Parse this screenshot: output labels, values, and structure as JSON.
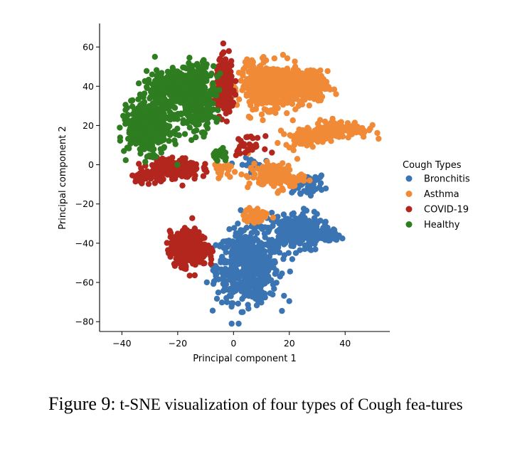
{
  "caption": {
    "label": "Figure 9:",
    "text": "t-SNE visualization of four types of Cough fea-tures"
  },
  "chart_data": {
    "type": "scatter",
    "title": "",
    "xlabel": "Principal component 1",
    "ylabel": "Principal component 2",
    "xlim": [
      -48,
      56
    ],
    "ylim": [
      -85,
      72
    ],
    "xticks": [
      -40,
      -20,
      0,
      20,
      40
    ],
    "xtick_labels": [
      "−40",
      "−20",
      "0",
      "20",
      "40"
    ],
    "yticks": [
      -80,
      -60,
      -40,
      -20,
      0,
      20,
      40,
      60
    ],
    "ytick_labels": [
      "−80",
      "−60",
      "−40",
      "−20",
      "0",
      "20",
      "40",
      "60"
    ],
    "grid": false,
    "legend": {
      "title": "Cough Types",
      "placement": "right"
    },
    "series": [
      {
        "name": "Bronchitis",
        "color": "#3a74b3",
        "clusters": [
          {
            "center": [
              5,
              -52
            ],
            "spread": [
              10,
              16
            ],
            "count": 600
          },
          {
            "center": [
              22,
              -34
            ],
            "spread": [
              9,
              9
            ],
            "count": 260
          },
          {
            "center": [
              34,
              -36
            ],
            "spread": [
              4,
              3
            ],
            "count": 60
          },
          {
            "center": [
              26,
              -10
            ],
            "spread": [
              6,
              4
            ],
            "count": 50
          },
          {
            "center": [
              6,
              0
            ],
            "spread": [
              4,
              3
            ],
            "count": 20
          }
        ]
      },
      {
        "name": "Asthma",
        "color": "#f08a36",
        "clusters": [
          {
            "center": [
              13,
              40
            ],
            "spread": [
              10,
              10
            ],
            "count": 520
          },
          {
            "center": [
              26,
              40
            ],
            "spread": [
              7,
              7
            ],
            "count": 260
          },
          {
            "center": [
              38,
              18
            ],
            "spread": [
              9,
              4
            ],
            "count": 140
          },
          {
            "center": [
              25,
              14
            ],
            "spread": [
              6,
              4
            ],
            "count": 80
          },
          {
            "center": [
              15,
              -6
            ],
            "spread": [
              9,
              6
            ],
            "count": 140
          },
          {
            "center": [
              8,
              -26
            ],
            "spread": [
              4,
              4
            ],
            "count": 50
          },
          {
            "center": [
              -5,
              -2
            ],
            "spread": [
              3,
              3
            ],
            "count": 25
          }
        ]
      },
      {
        "name": "COVID-19",
        "color": "#b3261e",
        "clusters": [
          {
            "center": [
              -16,
              -43
            ],
            "spread": [
              6,
              8
            ],
            "count": 360
          },
          {
            "center": [
              -21,
              -2
            ],
            "spread": [
              8,
              5
            ],
            "count": 200
          },
          {
            "center": [
              -3,
              40
            ],
            "spread": [
              3,
              12
            ],
            "count": 240
          },
          {
            "center": [
              -32,
              -6
            ],
            "spread": [
              4,
              3
            ],
            "count": 35
          },
          {
            "center": [
              5,
              10
            ],
            "spread": [
              5,
              4
            ],
            "count": 30
          }
        ]
      },
      {
        "name": "Healthy",
        "color": "#2e7d20",
        "clusters": [
          {
            "center": [
              -30,
              20
            ],
            "spread": [
              7,
              12
            ],
            "count": 500
          },
          {
            "center": [
              -13,
              35
            ],
            "spread": [
              6,
              15
            ],
            "count": 300
          },
          {
            "center": [
              -22,
              40
            ],
            "spread": [
              9,
              9
            ],
            "count": 200
          },
          {
            "center": [
              -5,
              5
            ],
            "spread": [
              3,
              3
            ],
            "count": 20
          }
        ]
      }
    ]
  }
}
